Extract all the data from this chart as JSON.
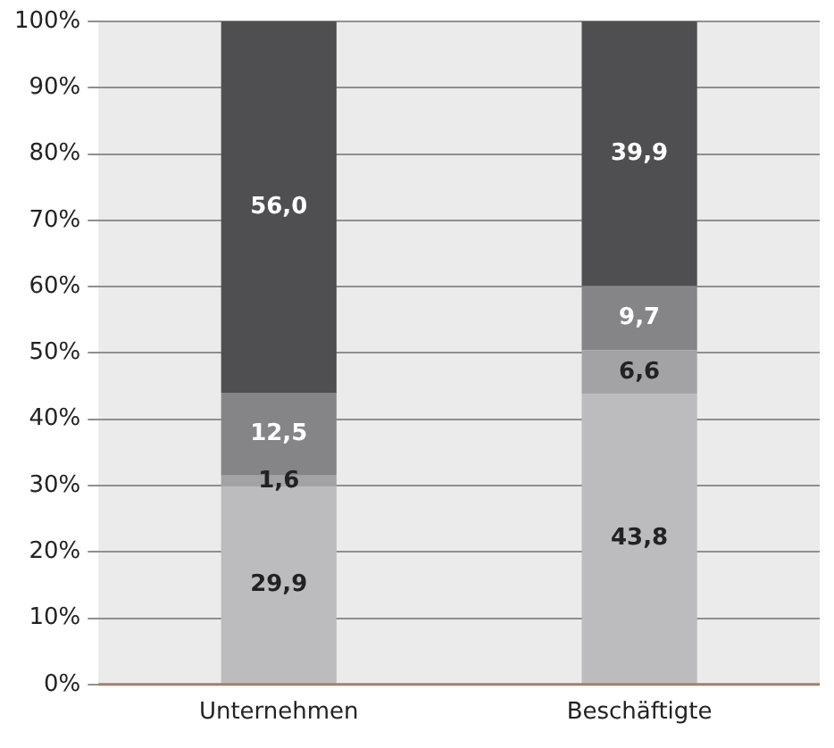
{
  "chart_data": {
    "type": "bar",
    "stacked": true,
    "categories": [
      "Unternehmen",
      "Beschäftigte"
    ],
    "series": [
      {
        "color": "#bcbcbe",
        "values": [
          29.9,
          43.8
        ],
        "value_labels": [
          "29,9",
          "43,8"
        ]
      },
      {
        "color": "#a3a3a5",
        "values": [
          1.6,
          6.6
        ],
        "value_labels": [
          "1,6",
          "6,6"
        ]
      },
      {
        "color": "#858587",
        "values": [
          12.5,
          9.7
        ],
        "value_labels": [
          "12,5",
          "9,7"
        ]
      },
      {
        "color": "#4f4f51",
        "values": [
          56.0,
          39.9
        ],
        "value_labels": [
          "56,0",
          "39,9"
        ]
      }
    ],
    "ylim": [
      0,
      100
    ],
    "yticks": [
      {
        "value": 0,
        "label": "0%"
      },
      {
        "value": 10,
        "label": "10%"
      },
      {
        "value": 20,
        "label": "20%"
      },
      {
        "value": 30,
        "label": "30%"
      },
      {
        "value": 40,
        "label": "40%"
      },
      {
        "value": 50,
        "label": "50%"
      },
      {
        "value": 60,
        "label": "60%"
      },
      {
        "value": 70,
        "label": "70%"
      },
      {
        "value": 80,
        "label": "80%"
      },
      {
        "value": 90,
        "label": "90%"
      },
      {
        "value": 100,
        "label": "100%"
      }
    ],
    "grid": "y",
    "legend": false
  }
}
